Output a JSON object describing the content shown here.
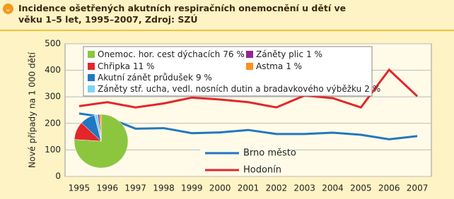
{
  "chart_data": [
    {
      "type": "line",
      "title": "Incidence ošetřených akutních respiračních onemocnění u dětí ve věku 1–5 let, 1995–2007, Zdroj: SZÚ",
      "y_label": "Nové případy na 1 000 dětí",
      "categories": [
        "1995",
        "1996",
        "1997",
        "1998",
        "1999",
        "2000",
        "2001",
        "2002",
        "2003",
        "2004",
        "2005",
        "2006",
        "2007"
      ],
      "series": [
        {
          "name": "Brno město",
          "color": "#1f78c1",
          "values": [
            237,
            222,
            180,
            182,
            163,
            166,
            175,
            160,
            160,
            165,
            157,
            140,
            152
          ]
        },
        {
          "name": "Hodonín",
          "color": "#e4262b",
          "values": [
            265,
            280,
            260,
            275,
            297,
            290,
            280,
            260,
            305,
            295,
            260,
            402,
            302
          ]
        }
      ],
      "ylim": [
        0,
        500
      ],
      "yticks": [
        0,
        100,
        200,
        300,
        400,
        500
      ],
      "grid": true
    },
    {
      "type": "pie",
      "categories": [
        "Onemoc. hor. cest dýchacích",
        "Chřipka",
        "Akutní zánět průdušek",
        "Záněty stř. ucha, vedl. nosních dutin a bradavkového výběžku",
        "Záněty plic",
        "Astma"
      ],
      "values": [
        76,
        11,
        9,
        2,
        1,
        1
      ],
      "value_labels": [
        "76 %",
        "11 %",
        "9 %",
        "2 %",
        "1 %",
        "1 %"
      ],
      "colors": [
        "#8cc63f",
        "#e4262b",
        "#1f78c1",
        "#7fd3f5",
        "#92278f",
        "#f7941d"
      ]
    }
  ]
}
